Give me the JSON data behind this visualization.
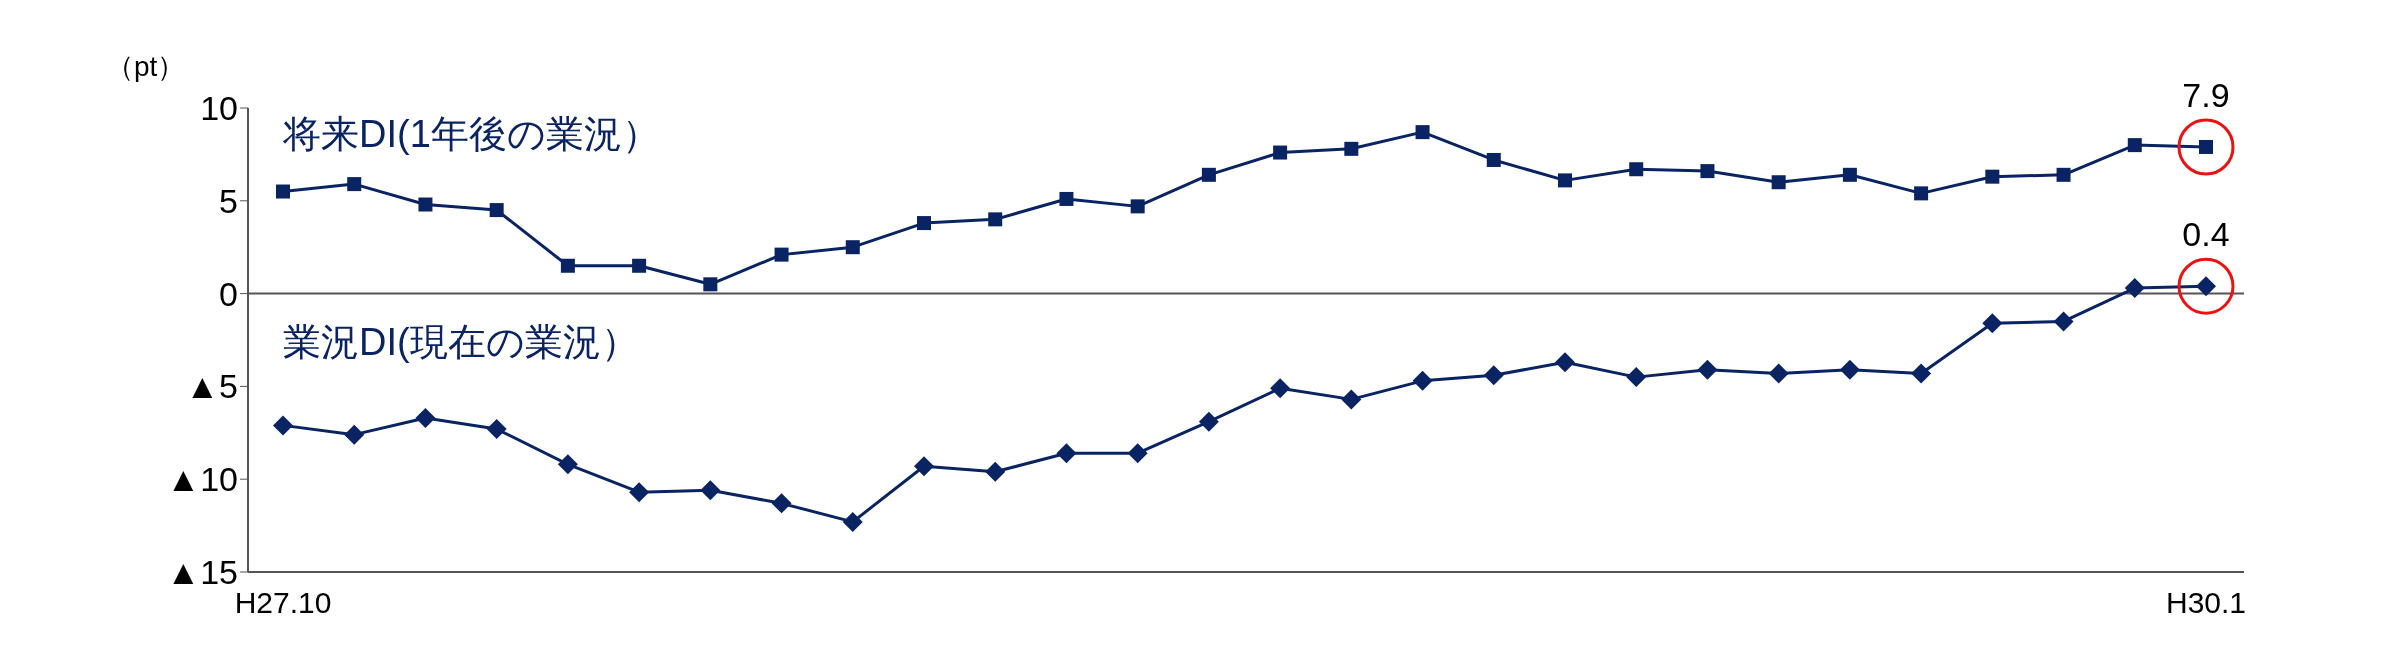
{
  "chart_data": {
    "type": "line",
    "ylabel": "（pt）",
    "categories": [
      "H27.10",
      null,
      null,
      null,
      null,
      null,
      null,
      null,
      null,
      null,
      null,
      null,
      null,
      null,
      null,
      null,
      null,
      null,
      null,
      null,
      null,
      null,
      null,
      null,
      null,
      null,
      null,
      "H30.1"
    ],
    "series": [
      {
        "name": "将来DI(1年後の業況）",
        "color": "#0a2463",
        "marker": "square",
        "values": [
          5.5,
          5.9,
          4.8,
          4.5,
          1.5,
          1.5,
          0.5,
          2.1,
          2.5,
          3.8,
          4.0,
          5.1,
          4.7,
          6.4,
          7.6,
          7.8,
          8.7,
          7.2,
          6.1,
          6.7,
          6.6,
          6.0,
          6.4,
          5.4,
          6.3,
          6.4,
          8.0,
          7.9
        ],
        "value_labels": [
          null,
          null,
          null,
          null,
          null,
          null,
          null,
          null,
          null,
          null,
          null,
          null,
          null,
          null,
          null,
          null,
          null,
          null,
          null,
          null,
          null,
          null,
          null,
          null,
          null,
          null,
          null,
          "7.9"
        ]
      },
      {
        "name": "業況DI(現在の業況）",
        "color": "#0a2463",
        "marker": "diamond",
        "values": [
          -7.1,
          -7.6,
          -6.7,
          -7.3,
          -9.2,
          -10.7,
          -10.6,
          -11.3,
          -12.3,
          -9.3,
          -9.6,
          -8.6,
          -8.6,
          -6.9,
          -5.1,
          -5.7,
          -4.7,
          -4.4,
          -3.7,
          -4.5,
          -4.1,
          -4.3,
          -4.1,
          -4.3,
          -1.6,
          -1.5,
          0.3,
          0.4
        ],
        "value_labels": [
          null,
          null,
          null,
          null,
          null,
          null,
          null,
          null,
          null,
          null,
          null,
          null,
          null,
          null,
          null,
          null,
          null,
          null,
          null,
          null,
          null,
          null,
          null,
          null,
          null,
          null,
          null,
          "0.4"
        ]
      }
    ],
    "ylim": [
      -15,
      10
    ],
    "yticks": [
      10,
      5,
      0,
      {
        "value": -5,
        "label": "▲5"
      },
      {
        "value": -10,
        "label": "▲10"
      },
      {
        "value": -15,
        "label": "▲15"
      }
    ],
    "ref_lines": [
      {
        "axis": "y",
        "value": 0,
        "color": "#555555"
      }
    ],
    "grid": false,
    "legend": false,
    "line_style": "solid"
  }
}
